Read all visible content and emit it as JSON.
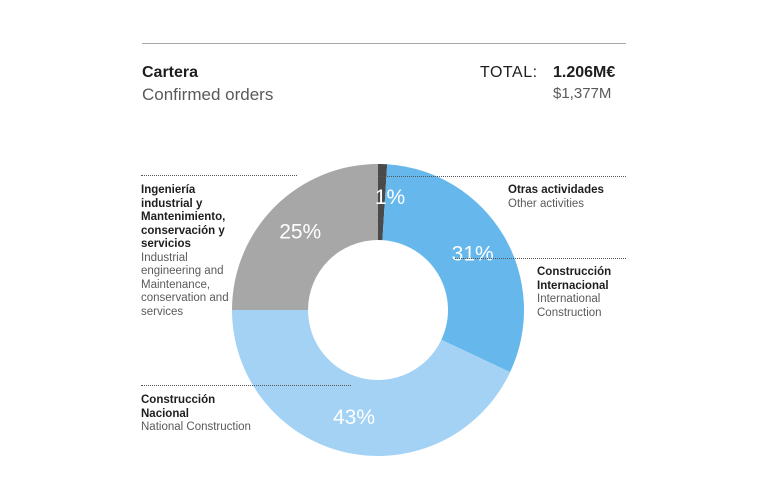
{
  "header": {
    "title": "Cartera",
    "subtitle": "Confirmed orders",
    "total_label": "TOTAL:",
    "total_eur": "1.206M€",
    "total_usd": "$1,377M"
  },
  "chart_data": {
    "type": "pie",
    "title": "Cartera",
    "subtitle": "Confirmed orders",
    "categories": [
      "Otras actividades",
      "Construcción Internacional",
      "Construcción Nacional",
      "Ingeniería industrial y Mantenimiento, conservación y servicios"
    ],
    "values": [
      1,
      31,
      43,
      25
    ],
    "labels": [
      "1%",
      "31%",
      "43%",
      "25%"
    ],
    "colors": [
      "#4a4a4a",
      "#66b8ec",
      "#a3d2f5",
      "#a7a7a7"
    ],
    "donut": true
  },
  "callouts": {
    "otras": {
      "es": "Otras actividades",
      "en": "Other activities"
    },
    "internacional": {
      "es": "Construcción Internacional",
      "en": "International Construction"
    },
    "nacional": {
      "es": "Construcción Nacional",
      "en": "National Construction"
    },
    "ingenieria": {
      "es": "Ingeniería industrial y Mantenimiento, conservación y servicios",
      "en": "Industrial engineering and Maintenance, conservation and services"
    }
  }
}
